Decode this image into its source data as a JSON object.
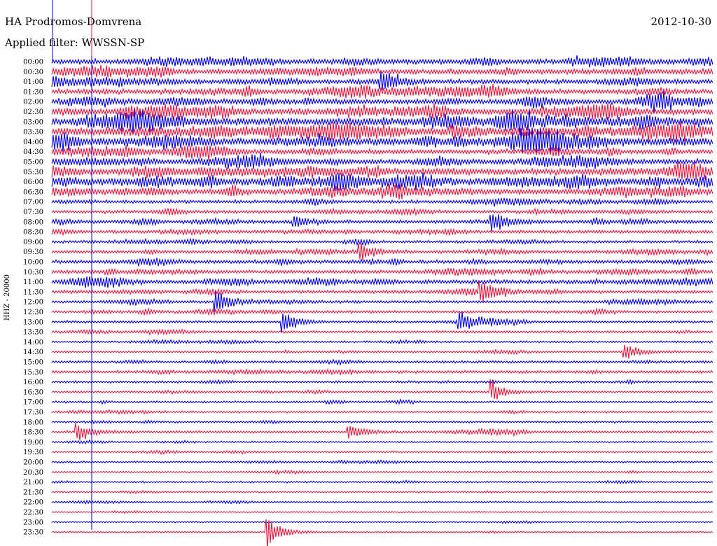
{
  "header": {
    "station": "HA Prodromos-Domvrena",
    "filter": "Applied filter: WWSSN-SP",
    "date": "2012-10-30"
  },
  "chart_data": {
    "type": "line",
    "title": "HA Prodromos-Domvrena",
    "subtitle": "Applied filter: WWSSN-SP",
    "ylabel": "HHZ - 20000",
    "rows": [
      "00:00",
      "00:30",
      "01:00",
      "01:30",
      "02:00",
      "02:30",
      "03:00",
      "03:30",
      "04:00",
      "04:30",
      "05:00",
      "05:30",
      "06:00",
      "06:30",
      "07:00",
      "07:30",
      "08:00",
      "08:30",
      "09:00",
      "09:30",
      "10:00",
      "10:30",
      "11:00",
      "11:30",
      "12:00",
      "12:30",
      "13:00",
      "13:30",
      "14:00",
      "14:30",
      "15:00",
      "15:30",
      "16:00",
      "16:30",
      "17:00",
      "17:30",
      "18:00",
      "18:30",
      "19:00",
      "19:30",
      "20:00",
      "20:30",
      "21:00",
      "21:30",
      "22:00",
      "22:30",
      "23:00",
      "23:30"
    ],
    "row_duration_minutes": 30,
    "trace_colors": [
      "#0000e6",
      "#e8163c"
    ],
    "activity_level": [
      0.55,
      0.55,
      0.5,
      0.55,
      0.55,
      0.7,
      0.8,
      0.9,
      0.85,
      0.5,
      0.55,
      0.65,
      0.75,
      0.6,
      0.3,
      0.3,
      0.35,
      0.3,
      0.25,
      0.3,
      0.35,
      0.35,
      0.4,
      0.3,
      0.25,
      0.25,
      0.2,
      0.2,
      0.15,
      0.15,
      0.2,
      0.25,
      0.2,
      0.15,
      0.15,
      0.15,
      0.15,
      0.2,
      0.1,
      0.12,
      0.12,
      0.1,
      0.12,
      0.08,
      0.08,
      0.06,
      0.08,
      0.06
    ],
    "events": [
      {
        "row": "01:00",
        "minute": 15,
        "amplitude": 0.8
      },
      {
        "row": "08:00",
        "minute": 11,
        "amplitude": 0.6
      },
      {
        "row": "08:00",
        "minute": 20,
        "amplitude": 0.9
      },
      {
        "row": "09:30",
        "minute": 14,
        "amplitude": 0.9
      },
      {
        "row": "11:30",
        "minute": 19.5,
        "amplitude": 0.9
      },
      {
        "row": "12:00",
        "minute": 7.5,
        "amplitude": 1.2
      },
      {
        "row": "13:00",
        "minute": 10.5,
        "amplitude": 1.1
      },
      {
        "row": "13:00",
        "minute": 18.5,
        "amplitude": 1.0
      },
      {
        "row": "14:30",
        "minute": 26,
        "amplitude": 0.8
      },
      {
        "row": "16:30",
        "minute": 20,
        "amplitude": 0.9
      },
      {
        "row": "18:30",
        "minute": 1.2,
        "amplitude": 0.8
      },
      {
        "row": "18:30",
        "minute": 13.5,
        "amplitude": 0.7
      },
      {
        "row": "23:30",
        "minute": 9.8,
        "amplitude": 1.6
      }
    ],
    "grid": false,
    "legend": "none"
  }
}
